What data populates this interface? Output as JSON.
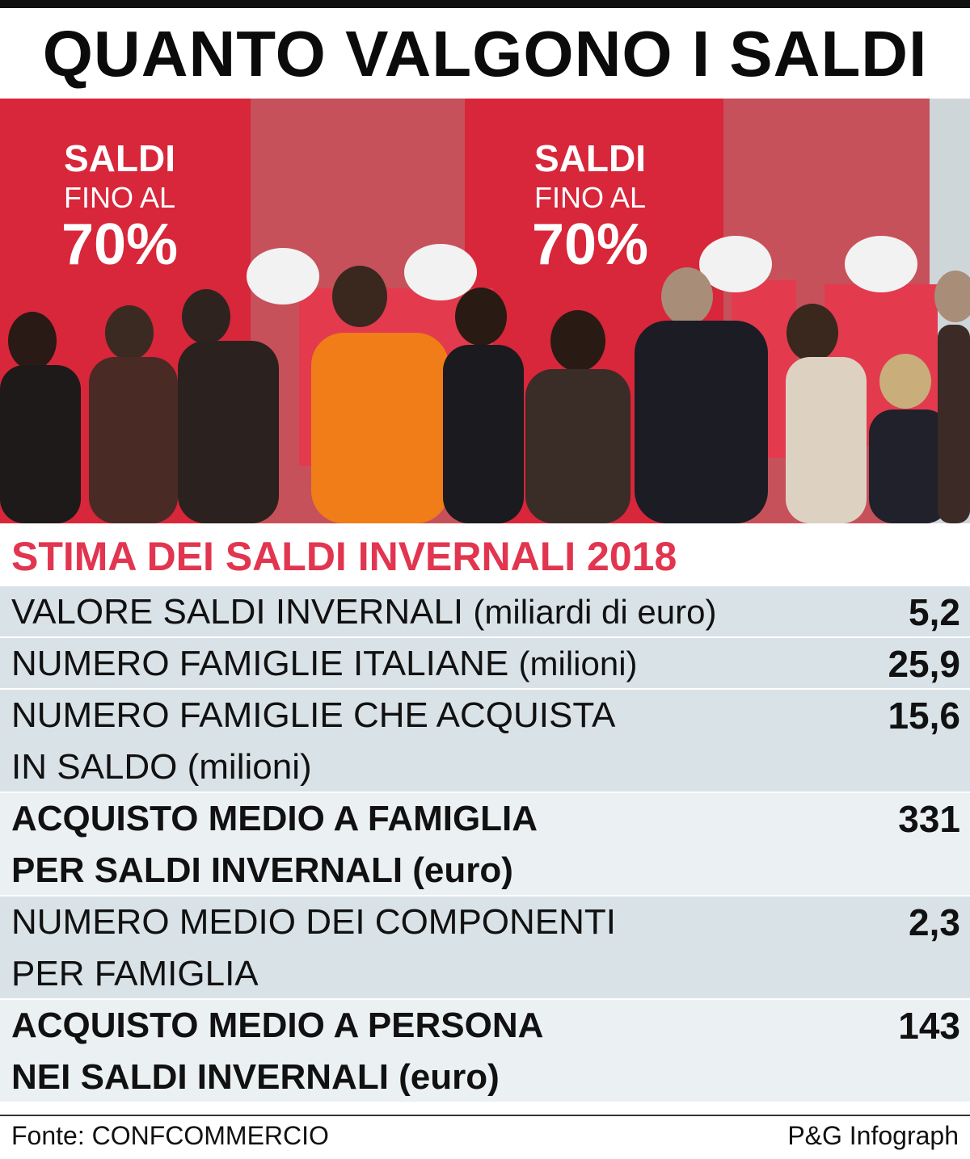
{
  "title": "QUANTO VALGONO I SALDI",
  "photo": {
    "sign_line1": "SALDI",
    "sign_line2": "FINO AL",
    "sign_line3": "70%",
    "banner_text": "SALDI"
  },
  "subtitle": "STIMA DEI SALDI INVERNALI 2018",
  "rows": [
    {
      "label_main": "VALORE SALDI INVERNALI",
      "label_unit": "(miliardi di euro)",
      "label_line2": "",
      "value": "5,2",
      "bold": false
    },
    {
      "label_main": "NUMERO FAMIGLIE ITALIANE",
      "label_unit": "(milioni)",
      "label_line2": "",
      "value": "25,9",
      "bold": false
    },
    {
      "label_main": "NUMERO FAMIGLIE CHE ACQUISTA",
      "label_unit": "",
      "label_line2": "IN SALDO (milioni)",
      "value": "15,6",
      "bold": false
    },
    {
      "label_main": "ACQUISTO MEDIO A FAMIGLIA",
      "label_unit": "",
      "label_line2": "PER SALDI INVERNALI (euro)",
      "value": "331",
      "bold": true
    },
    {
      "label_main": "NUMERO MEDIO DEI COMPONENTI",
      "label_unit": "",
      "label_line2": "PER FAMIGLIA",
      "value": "2,3",
      "bold": false
    },
    {
      "label_main": "ACQUISTO MEDIO A PERSONA",
      "label_unit": "",
      "label_line2": "NEI SALDI INVERNALI (euro)",
      "value": "143",
      "bold": true
    }
  ],
  "footer": {
    "source": "Fonte: CONFCOMMERCIO",
    "credit": "P&G Infograph"
  },
  "colors": {
    "accent_red": "#e2354f",
    "row_blue": "#d9e2e7",
    "row_light": "#ebf0f3",
    "sign_red": "#d8263a"
  }
}
